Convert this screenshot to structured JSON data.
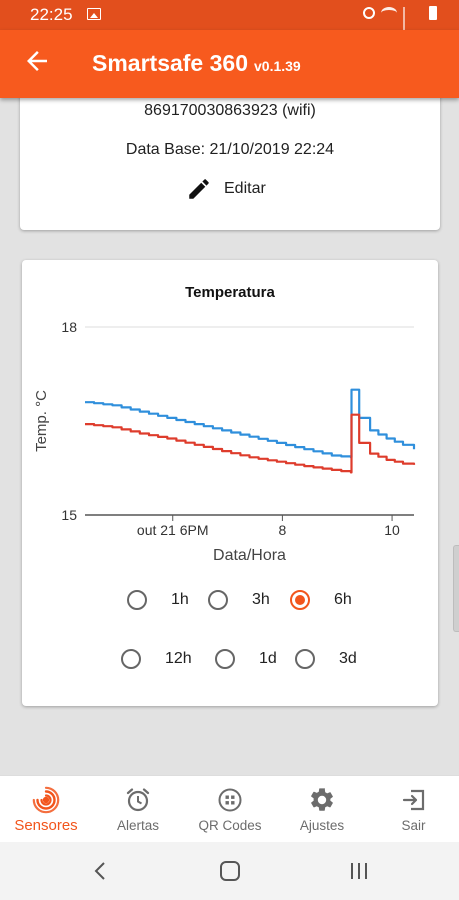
{
  "status_bar": {
    "time": "22:25"
  },
  "app_bar": {
    "title": "Smartsafe 360",
    "version": "v0.1.39"
  },
  "device_card": {
    "serial": "869170030863923 (wifi)",
    "database": "Data Base: 21/10/2019 22:24",
    "edit_label": "Editar"
  },
  "chart_card": {
    "range_options": [
      {
        "label": "1h",
        "selected": false
      },
      {
        "label": "3h",
        "selected": false
      },
      {
        "label": "6h",
        "selected": true
      },
      {
        "label": "12h",
        "selected": false
      },
      {
        "label": "1d",
        "selected": false
      },
      {
        "label": "3d",
        "selected": false
      }
    ]
  },
  "chart_data": {
    "type": "line",
    "title": "Temperatura",
    "xlabel": "Data/Hora",
    "ylabel": "Temp. °C",
    "ylim": [
      15,
      18
    ],
    "yticks": [
      15,
      18
    ],
    "xlim": [
      0,
      6
    ],
    "xticks": [
      {
        "value": 1.6,
        "label": "out 21 6PM"
      },
      {
        "value": 3.6,
        "label": "8"
      },
      {
        "value": 5.6,
        "label": "10"
      }
    ],
    "grid": true,
    "legend": "none",
    "series": [
      {
        "color": "#2f8fdc",
        "x": [
          0,
          0.5,
          1.0,
          1.5,
          2.0,
          2.5,
          3.0,
          3.5,
          4.0,
          4.5,
          4.85,
          4.86,
          5.0,
          5.2,
          5.5,
          5.8,
          6.0
        ],
        "y": [
          16.8,
          16.75,
          16.65,
          16.55,
          16.45,
          16.35,
          16.25,
          16.15,
          16.05,
          15.95,
          15.92,
          17.0,
          16.55,
          16.35,
          16.22,
          16.12,
          16.05
        ]
      },
      {
        "color": "#de3c2c",
        "x": [
          0,
          0.5,
          1.0,
          1.5,
          2.0,
          2.5,
          3.0,
          3.5,
          4.0,
          4.5,
          4.85,
          4.86,
          5.0,
          5.2,
          5.5,
          5.8,
          6.0
        ],
        "y": [
          16.45,
          16.4,
          16.3,
          16.22,
          16.12,
          16.02,
          15.92,
          15.85,
          15.78,
          15.72,
          15.68,
          16.6,
          16.15,
          15.98,
          15.88,
          15.82,
          15.8
        ]
      }
    ]
  },
  "bottom_nav": {
    "items": [
      {
        "label": "Sensores",
        "icon": "sensor-icon",
        "active": true
      },
      {
        "label": "Alertas",
        "icon": "alarm-clock-icon",
        "active": false
      },
      {
        "label": "QR Codes",
        "icon": "qr-code-icon",
        "active": false
      },
      {
        "label": "Ajustes",
        "icon": "gear-icon",
        "active": false
      },
      {
        "label": "Sair",
        "icon": "exit-icon",
        "active": false
      }
    ]
  },
  "colors": {
    "status_bar": "#e24f1d",
    "app_bar": "#f75a1e",
    "accent": "#f2551c",
    "background": "#e2e2e2"
  }
}
